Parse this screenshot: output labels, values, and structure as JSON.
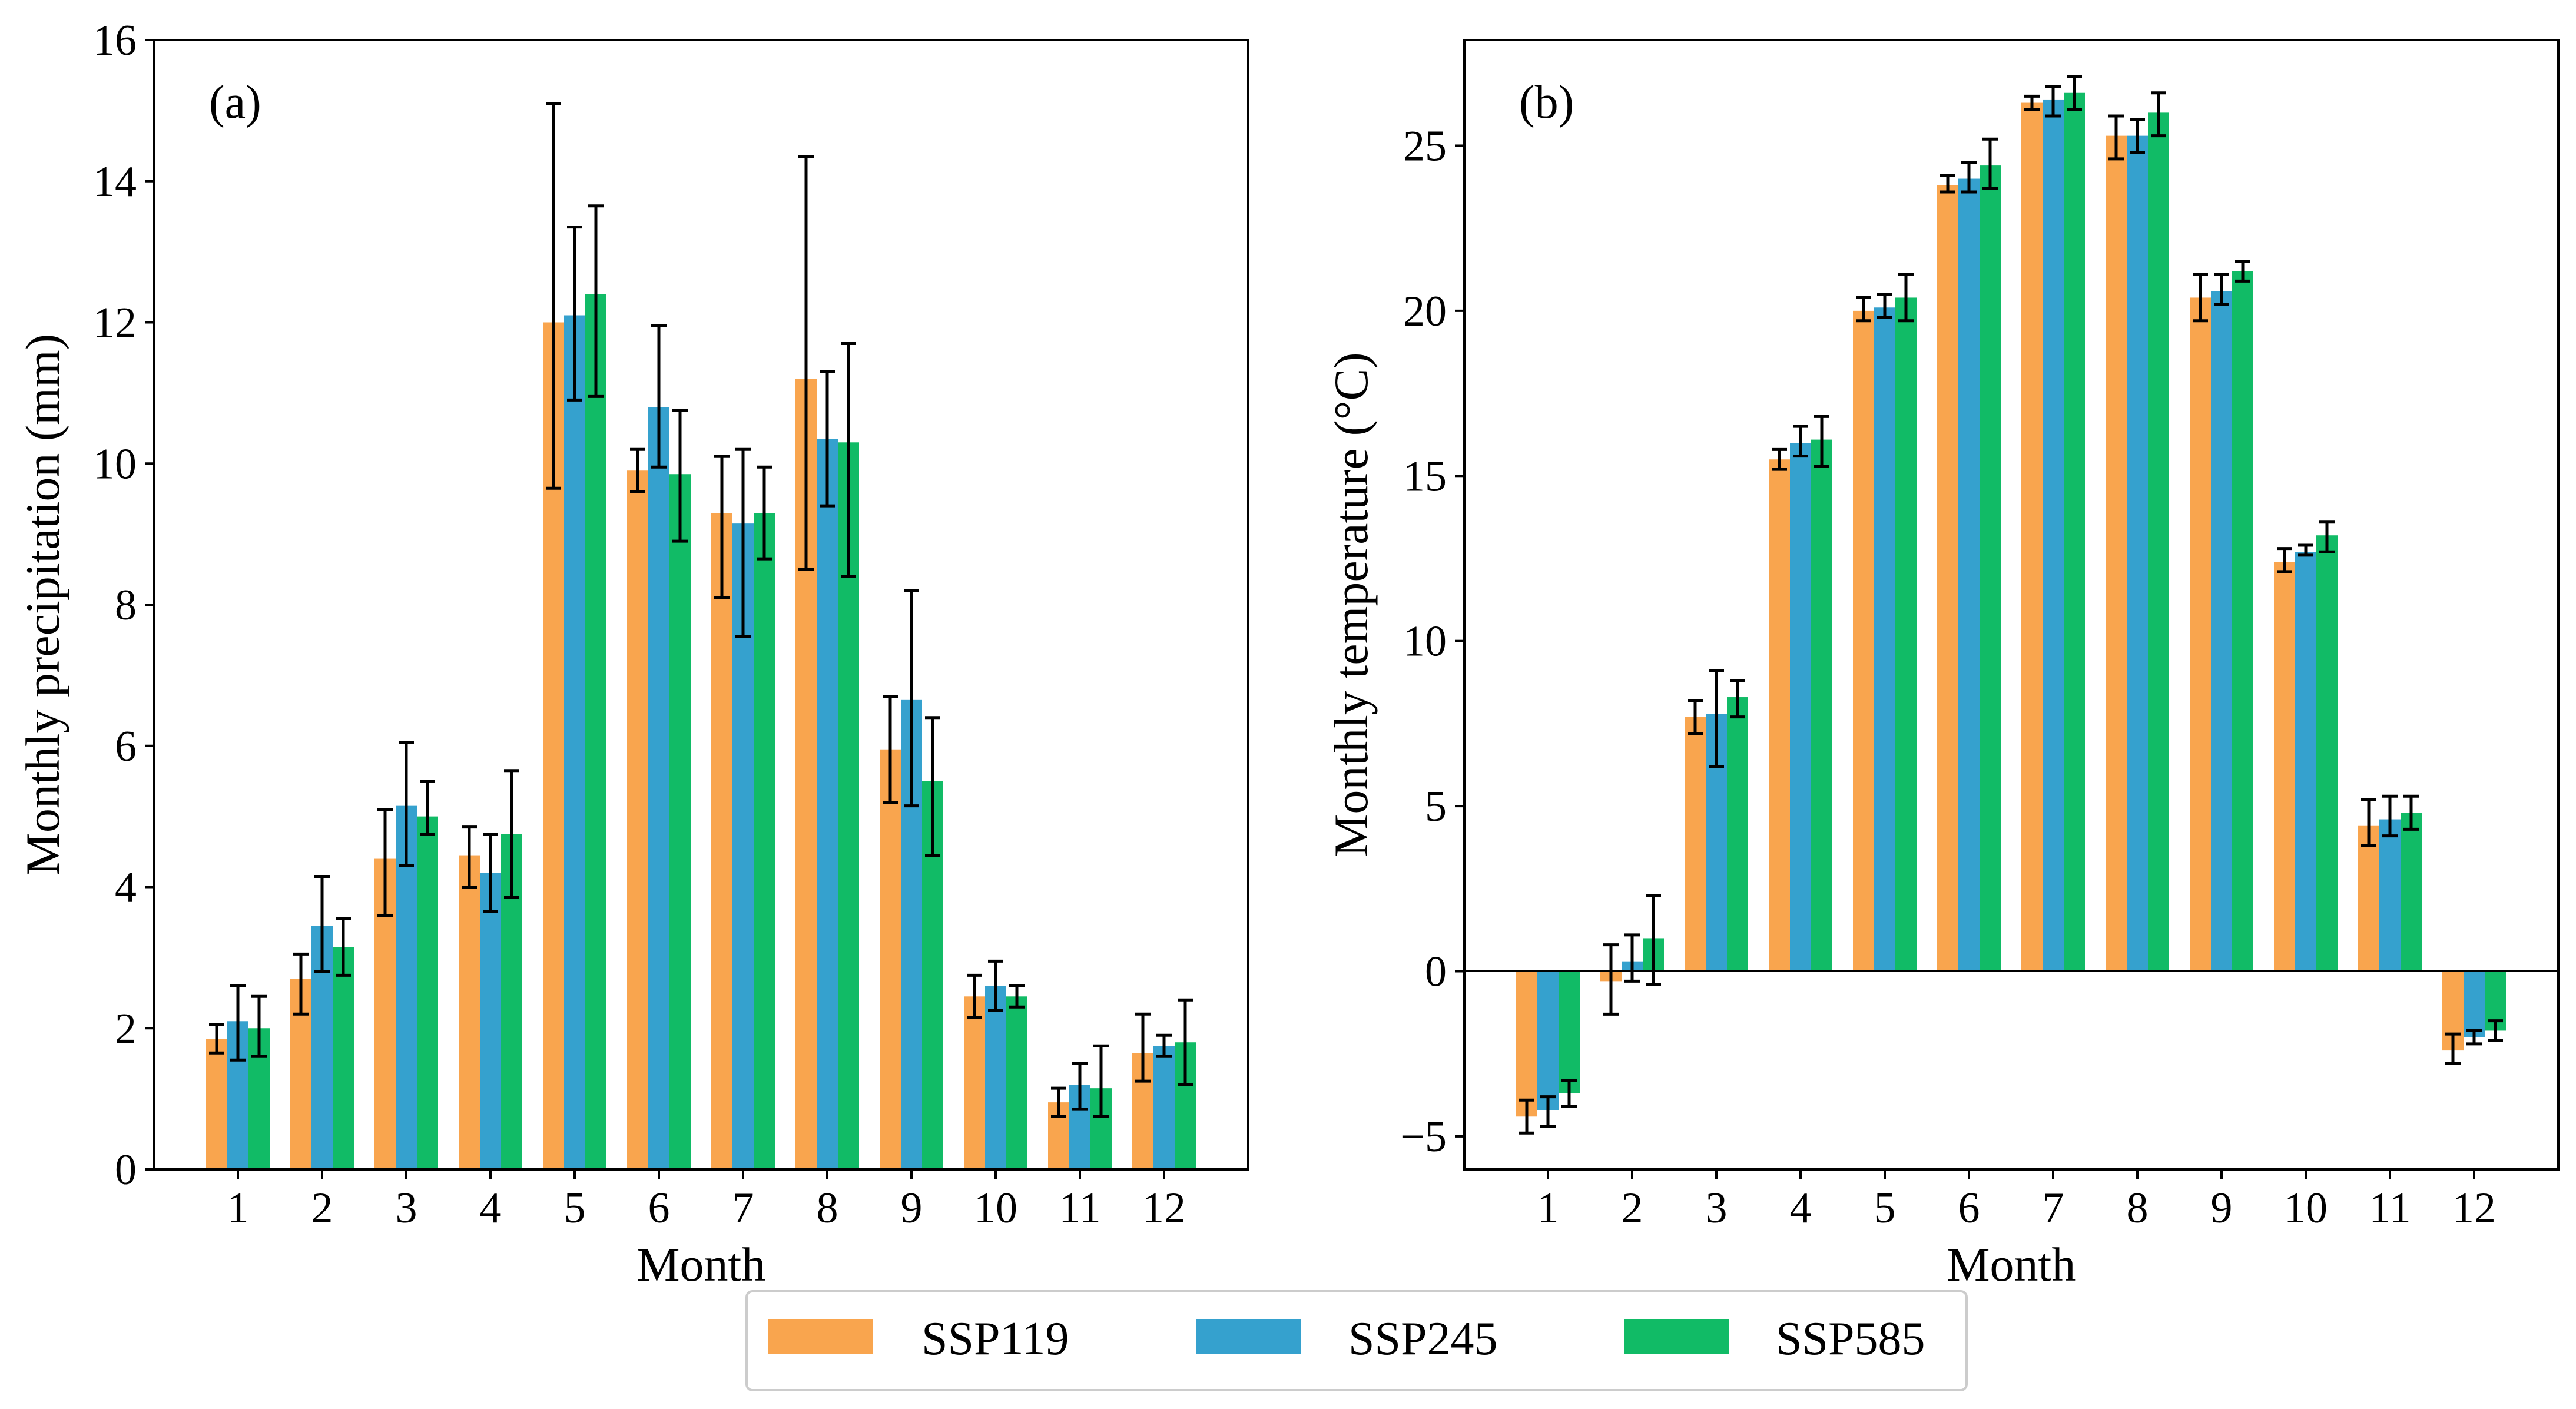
{
  "colors": {
    "SSP119": "#f9a54e",
    "SSP245": "#35a1ce",
    "SSP585": "#11bb66"
  },
  "legend": [
    "SSP119",
    "SSP245",
    "SSP585"
  ],
  "chart_data": [
    {
      "type": "bar",
      "panel_label": "(a)",
      "title": "",
      "xlabel": "Month",
      "ylabel": "Monthly precipitation (mm)",
      "ylim": [
        0,
        16
      ],
      "yticks": [
        0,
        2,
        4,
        6,
        8,
        10,
        12,
        14,
        16
      ],
      "ytick_labels": [
        "0",
        "2",
        "4",
        "6",
        "8",
        "10",
        "12",
        "14",
        "16"
      ],
      "categories": [
        "1",
        "2",
        "3",
        "4",
        "5",
        "6",
        "7",
        "8",
        "9",
        "10",
        "11",
        "12"
      ],
      "series": [
        {
          "name": "SSP119",
          "values": [
            1.85,
            2.7,
            4.4,
            4.45,
            12.0,
            9.9,
            9.3,
            11.2,
            5.95,
            2.45,
            0.95,
            1.65
          ],
          "err_low": [
            1.65,
            2.2,
            3.6,
            4.0,
            9.65,
            9.6,
            8.1,
            8.5,
            5.2,
            2.15,
            0.75,
            1.25
          ],
          "err_high": [
            2.05,
            3.05,
            5.1,
            4.85,
            15.1,
            10.2,
            10.1,
            14.35,
            6.7,
            2.75,
            1.15,
            2.2
          ]
        },
        {
          "name": "SSP245",
          "values": [
            2.1,
            3.45,
            5.15,
            4.2,
            12.1,
            10.8,
            9.15,
            10.35,
            6.65,
            2.6,
            1.2,
            1.75
          ],
          "err_low": [
            1.55,
            2.8,
            4.3,
            3.65,
            10.9,
            9.95,
            7.55,
            9.4,
            5.15,
            2.25,
            0.85,
            1.6
          ],
          "err_high": [
            2.6,
            4.15,
            6.05,
            4.75,
            13.35,
            11.95,
            10.2,
            11.3,
            8.2,
            2.95,
            1.5,
            1.9
          ]
        },
        {
          "name": "SSP585",
          "values": [
            2.0,
            3.15,
            5.0,
            4.75,
            12.4,
            9.85,
            9.3,
            10.3,
            5.5,
            2.45,
            1.15,
            1.8
          ],
          "err_low": [
            1.6,
            2.75,
            4.75,
            3.85,
            10.95,
            8.9,
            8.65,
            8.4,
            4.45,
            2.3,
            0.75,
            1.2
          ],
          "err_high": [
            2.45,
            3.55,
            5.5,
            5.65,
            13.65,
            10.75,
            9.95,
            11.7,
            6.4,
            2.6,
            1.75,
            2.4
          ]
        }
      ]
    },
    {
      "type": "bar",
      "panel_label": "(b)",
      "title": "",
      "xlabel": "Month",
      "ylabel": "Monthly temperature (°C)",
      "ylim": [
        -6,
        28.2
      ],
      "yticks": [
        -5,
        0,
        5,
        10,
        15,
        20,
        25
      ],
      "ytick_labels": [
        "−5",
        "0",
        "5",
        "10",
        "15",
        "20",
        "25"
      ],
      "zero_line": true,
      "categories": [
        "1",
        "2",
        "3",
        "4",
        "5",
        "6",
        "7",
        "8",
        "9",
        "10",
        "11",
        "12"
      ],
      "series": [
        {
          "name": "SSP119",
          "values": [
            -4.4,
            -0.3,
            7.7,
            15.5,
            20.0,
            23.8,
            26.3,
            25.3,
            20.4,
            12.4,
            4.4,
            -2.4
          ],
          "err_low": [
            -4.9,
            -1.3,
            7.2,
            15.2,
            19.7,
            23.6,
            26.1,
            24.6,
            19.7,
            12.1,
            3.8,
            -2.8
          ],
          "err_high": [
            -3.9,
            0.8,
            8.2,
            15.8,
            20.4,
            24.1,
            26.5,
            25.9,
            21.1,
            12.8,
            5.2,
            -1.9
          ]
        },
        {
          "name": "SSP245",
          "values": [
            -4.2,
            0.3,
            7.8,
            16.0,
            20.1,
            24.0,
            26.4,
            25.3,
            20.6,
            12.7,
            4.6,
            -2.0
          ],
          "err_low": [
            -4.7,
            -0.3,
            6.2,
            15.6,
            19.8,
            23.6,
            25.9,
            24.8,
            20.2,
            12.6,
            4.1,
            -2.2
          ],
          "err_high": [
            -3.8,
            1.1,
            9.1,
            16.5,
            20.5,
            24.5,
            26.8,
            25.8,
            21.1,
            12.9,
            5.3,
            -1.8
          ]
        },
        {
          "name": "SSP585",
          "values": [
            -3.7,
            1.0,
            8.3,
            16.1,
            20.4,
            24.4,
            26.6,
            26.0,
            21.2,
            13.2,
            4.8,
            -1.8
          ],
          "err_low": [
            -4.1,
            -0.4,
            7.7,
            15.3,
            19.7,
            23.7,
            26.1,
            25.3,
            20.9,
            12.7,
            4.3,
            -2.1
          ],
          "err_high": [
            -3.3,
            2.3,
            8.8,
            16.8,
            21.1,
            25.2,
            27.1,
            26.6,
            21.5,
            13.6,
            5.3,
            -1.5
          ]
        }
      ]
    }
  ]
}
